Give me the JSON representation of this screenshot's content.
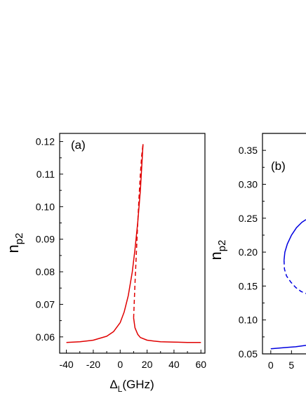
{
  "chart_data": [
    {
      "type": "line",
      "panel_label": "(a)",
      "xlabel_main": "Δ",
      "xlabel_sub": "L",
      "xlabel_rest": "(GHz)",
      "ylabel_main": "n",
      "ylabel_sub": "p2",
      "xlim": [
        -45,
        63
      ],
      "ylim": [
        0.055,
        0.1225
      ],
      "xticks": [
        -40,
        -20,
        0,
        20,
        40,
        60
      ],
      "xtick_labels": [
        "-40",
        "-20",
        "0",
        "20",
        "40",
        "60"
      ],
      "yticks": [
        0.06,
        0.07,
        0.08,
        0.09,
        0.1,
        0.11,
        0.12
      ],
      "ytick_labels": [
        "0.06",
        "0.07",
        "0.08",
        "0.09",
        "0.10",
        "0.11",
        "0.12"
      ],
      "series": [
        {
          "style": "solid",
          "color": "#e00000",
          "x": [
            -40,
            -30,
            -20,
            -10,
            -5,
            0,
            3,
            6,
            9,
            11,
            13,
            15,
            17
          ],
          "y": [
            0.0583,
            0.0585,
            0.059,
            0.0602,
            0.0616,
            0.0644,
            0.0677,
            0.0727,
            0.08,
            0.0868,
            0.095,
            0.105,
            0.1192
          ]
        },
        {
          "style": "dashed",
          "color": "#e00000",
          "x": [
            10,
            11,
            12,
            13,
            14,
            15,
            16,
            17
          ],
          "y": [
            0.0658,
            0.0762,
            0.0858,
            0.0947,
            0.103,
            0.11,
            0.1157,
            0.1192
          ]
        },
        {
          "style": "solid",
          "color": "#e00000",
          "x": [
            10,
            11,
            13,
            15,
            20,
            25,
            30,
            40,
            50,
            60
          ],
          "y": [
            0.0658,
            0.0628,
            0.0608,
            0.0598,
            0.059,
            0.0587,
            0.0585,
            0.0584,
            0.0583,
            0.0583
          ]
        }
      ]
    },
    {
      "type": "line",
      "panel_label": "(b)",
      "ylabel_main": "n",
      "ylabel_sub": "p2",
      "xlim": [
        -2,
        8.5
      ],
      "ylim": [
        0.05,
        0.375
      ],
      "xticks": [
        0,
        5
      ],
      "xtick_labels": [
        "0",
        "5"
      ],
      "yticks": [
        0.05,
        0.1,
        0.15,
        0.2,
        0.25,
        0.3,
        0.35
      ],
      "ytick_labels": [
        "0.05",
        "0.10",
        "0.15",
        "0.20",
        "0.25",
        "0.30",
        "0.35"
      ],
      "series": [
        {
          "style": "solid",
          "color": "#0000e0",
          "x": [
            0,
            2,
            4,
            6,
            8.5
          ],
          "y": [
            0.0575,
            0.0585,
            0.0595,
            0.0605,
            0.0625
          ]
        },
        {
          "style": "solid",
          "color": "#0000e0",
          "x": [
            3.2,
            3.4,
            4.0,
            5.0,
            6.2,
            7.5,
            8.5
          ],
          "y": [
            0.188,
            0.2,
            0.212,
            0.225,
            0.236,
            0.244,
            0.248
          ]
        },
        {
          "style": "dashed",
          "color": "#0000e0",
          "x": [
            3.2,
            3.3,
            3.8,
            4.8,
            6.0,
            7.3,
            8.5
          ],
          "y": [
            0.188,
            0.175,
            0.165,
            0.156,
            0.148,
            0.142,
            0.139
          ]
        }
      ]
    }
  ]
}
